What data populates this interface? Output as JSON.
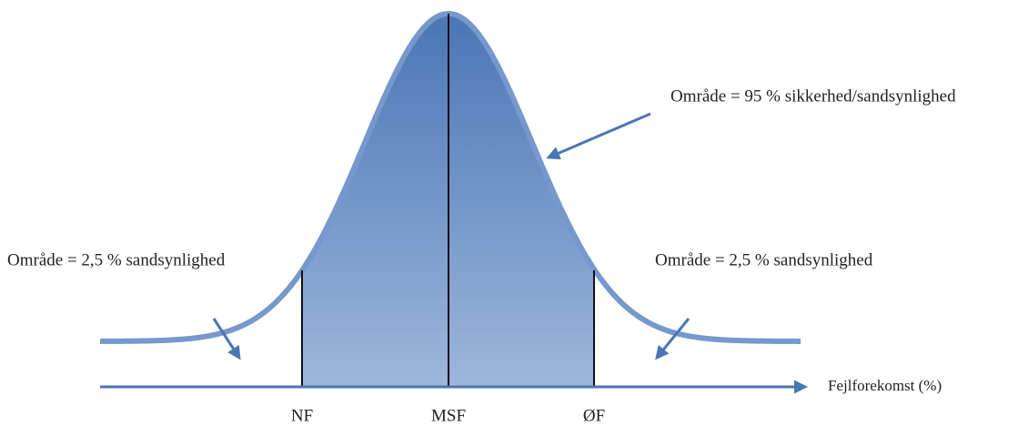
{
  "annotations": {
    "center": "Område = 95 % sikkerhed/sandsynlighed",
    "left": "Område = 2,5 % sandsynlighed",
    "right": "Område = 2,5 % sandsynlighed"
  },
  "axis": {
    "label": "Fejlforekomst (%)",
    "ticks": [
      "NF",
      "MSF",
      "ØF"
    ]
  }
}
